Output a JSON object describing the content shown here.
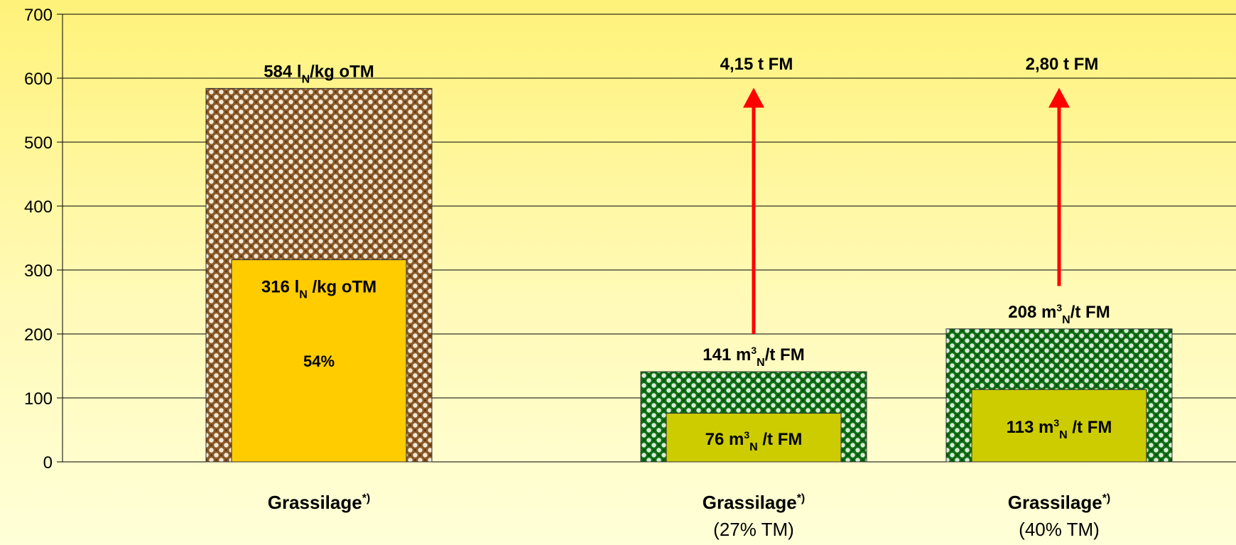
{
  "chart_data": {
    "type": "bar",
    "ylim": [
      0,
      700
    ],
    "yticks": [
      0,
      100,
      200,
      300,
      400,
      500,
      600,
      700
    ],
    "grid": true,
    "categories": [
      {
        "name": "Grassilage",
        "sup": "*)",
        "sub": ""
      },
      {
        "name": "Grassilage",
        "sup": "*)",
        "sub": "(27% TM)"
      },
      {
        "name": "Grassilage",
        "sup": "*)",
        "sub": "(40% TM)"
      }
    ],
    "series": [
      {
        "values": [
          584,
          141,
          208
        ],
        "labels": [
          {
            "main": "584 l",
            "sup": "",
            "sub": "N",
            "tail": "/kg oTM"
          },
          {
            "main": "141 m",
            "sup": "3",
            "sub": "N",
            "tail": "/t FM"
          },
          {
            "main": "208 m",
            "sup": "3",
            "sub": "N",
            "tail": "/t FM"
          }
        ]
      },
      {
        "values": [
          316,
          76,
          113
        ],
        "labels": [
          {
            "main": "316 l",
            "sup": "",
            "sub": "N",
            "tail": " /kg oTM"
          },
          {
            "main": "76 m",
            "sup": "3",
            "sub": "N",
            "tail": " /t FM"
          },
          {
            "main": "113 m",
            "sup": "3",
            "sub": "N",
            "tail": " /t FM"
          }
        ]
      }
    ],
    "annotations": {
      "percent": "54%",
      "arrows": [
        {
          "category": 1,
          "from": 200,
          "to": 585,
          "label": "4,15 t FM"
        },
        {
          "category": 2,
          "from": 275,
          "to": 585,
          "label": "2,80 t FM"
        }
      ]
    },
    "colors": {
      "outer_brown": "#8a5a2a",
      "outer_brown_dot": "#f2e8d4",
      "outer_green": "#0f6e14",
      "outer_green_dot": "#d8ecd8",
      "inner_gold": "#ffcc00",
      "inner_olive": "#cccc00",
      "arrow": "#ff0000"
    }
  }
}
